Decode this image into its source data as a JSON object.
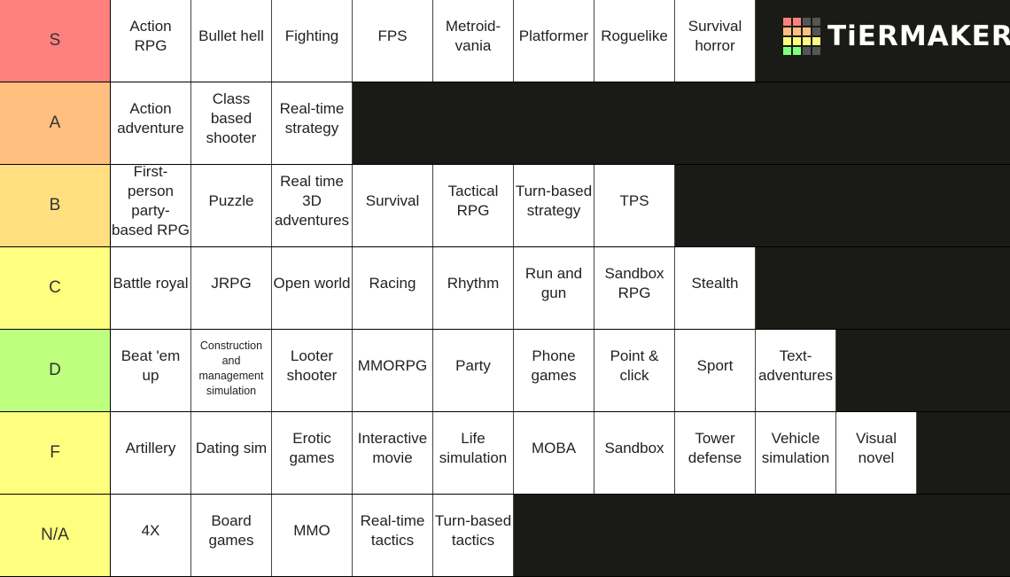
{
  "logo": "TiERMAKER",
  "tiers": [
    {
      "label": "S",
      "items": [
        "Action RPG",
        "Bullet hell",
        "Fighting",
        "FPS",
        "Metroid-vania",
        "Platformer",
        "Roguelike",
        "Survival horror"
      ]
    },
    {
      "label": "A",
      "items": [
        "Action adventure",
        "Class based shooter",
        "Real-time strategy"
      ]
    },
    {
      "label": "B",
      "items": [
        "First-person party-based RPG",
        "Puzzle",
        "Real time 3D adventures",
        "Survival",
        "Tactical RPG",
        "Turn-based strategy",
        "TPS"
      ]
    },
    {
      "label": "C",
      "items": [
        "Battle royal",
        "JRPG",
        "Open world",
        "Racing",
        "Rhythm",
        "Run and gun",
        "Sandbox RPG",
        "Stealth"
      ]
    },
    {
      "label": "D",
      "items": [
        "Beat 'em up",
        "Construction and management simulation",
        "Looter shooter",
        "MMORPG",
        "Party",
        "Phone games",
        "Point & click",
        "Sport",
        "Text-adventures"
      ]
    },
    {
      "label": "F",
      "items": [
        "Artillery",
        "Dating sim",
        "Erotic games",
        "Interactive movie",
        "Life simulation",
        "MOBA",
        "Sandbox",
        "Tower defense",
        "Vehicle simulation",
        "Visual novel"
      ]
    },
    {
      "label": "N/A",
      "items": [
        "4X",
        "Board games",
        "MMO",
        "Real-time tactics",
        "Turn-based tactics"
      ]
    }
  ]
}
